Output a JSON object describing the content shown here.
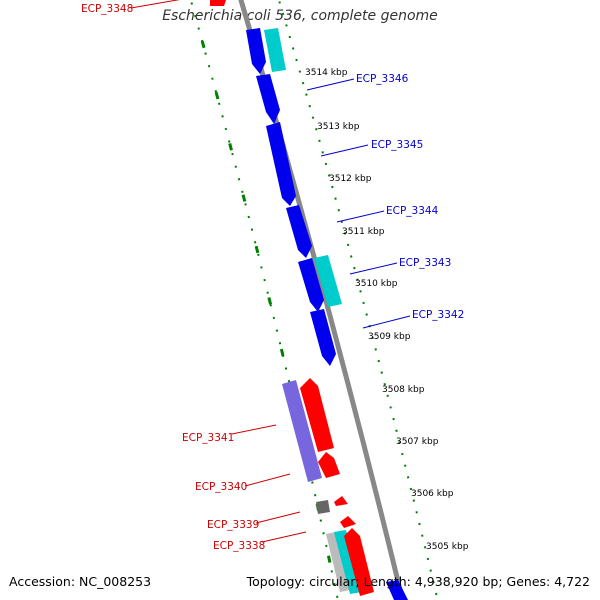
{
  "title": "Escherichia coli 536, complete genome",
  "footer": {
    "accession": "Accession: NC_008253",
    "summary": "Topology: circular; Length: 4,938,920 bp; Genes: 4,722"
  },
  "colors": {
    "forward_cds": "#0000ee",
    "forward_other": "#00cccc",
    "reverse_cds": "#ff0000",
    "reverse_other": "#7766dd",
    "tick": "#008000",
    "backbone": "#888888",
    "label_forward": "#0000cc",
    "label_reverse": "#cc0000"
  },
  "kbp_labels": [
    "3514 kbp",
    "3513 kbp",
    "3512 kbp",
    "3511 kbp",
    "3510 kbp",
    "3509 kbp",
    "3508 kbp",
    "3507 kbp",
    "3506 kbp",
    "3505 kbp"
  ],
  "gene_labels": {
    "forward": [
      "ECP_3346",
      "ECP_3345",
      "ECP_3344",
      "ECP_3343",
      "ECP_3342"
    ],
    "reverse": [
      "ECP_3348",
      "ECP_3341",
      "ECP_3340",
      "ECP_3339",
      "ECP_3338"
    ]
  }
}
